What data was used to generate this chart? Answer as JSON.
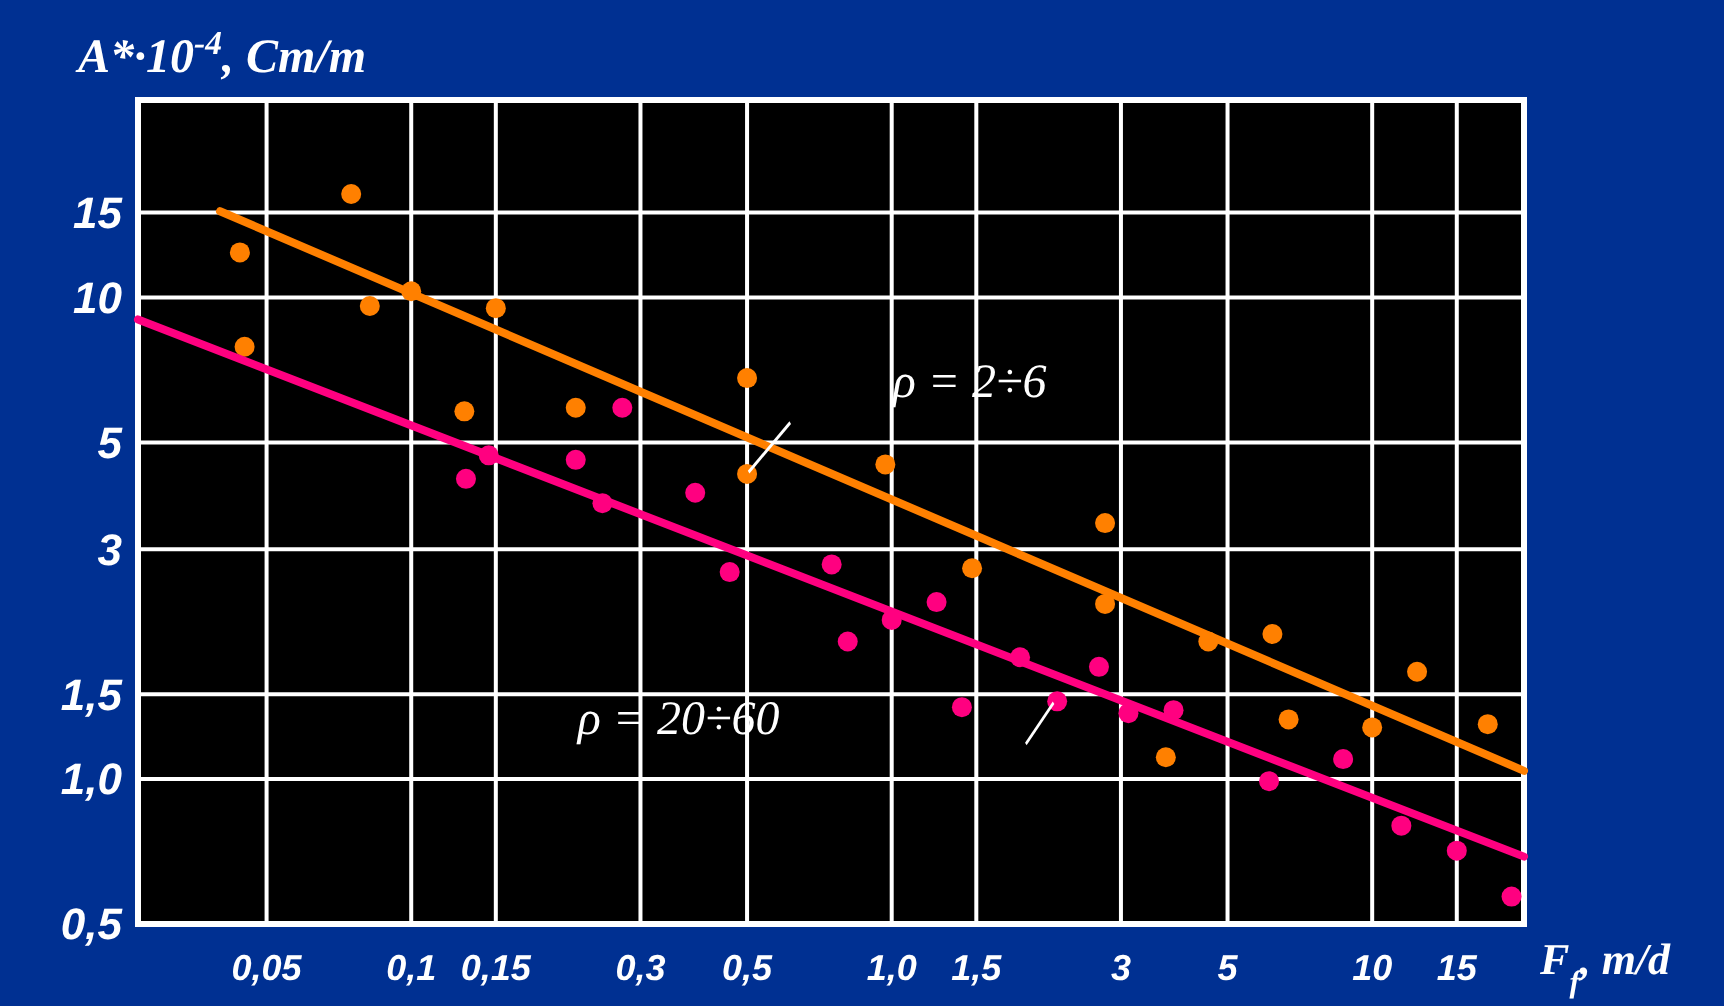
{
  "chart_data": {
    "type": "scatter",
    "xlabel": "F$_{f}$, m/d",
    "ylabel": "A*·10$^{-4}$, Cm/m",
    "xlim": [
      0.027,
      20.7
    ],
    "ylim": [
      0.5,
      25.7
    ],
    "xticks": [
      {
        "value": 0.05,
        "label": "0,05"
      },
      {
        "value": 0.1,
        "label": "0,1"
      },
      {
        "value": 0.15,
        "label": "0,15"
      },
      {
        "value": 0.3,
        "label": "0,3"
      },
      {
        "value": 0.5,
        "label": "0,5"
      },
      {
        "value": 1,
        "label": "1,0"
      },
      {
        "value": 1.5,
        "label": "1,5"
      },
      3,
      5,
      10,
      15
    ],
    "yticks": [
      {
        "value": 0.5,
        "label": "0,5"
      },
      {
        "value": 1,
        "label": "1,0"
      },
      {
        "value": 1.5,
        "label": "1,5"
      },
      3,
      5,
      10,
      15
    ],
    "grid": true,
    "marker": "circle",
    "log": "xy",
    "series": [
      {
        "color": "#ff8000",
        "x": [
          0.044,
          0.045,
          0.075,
          0.082,
          0.1,
          0.129,
          0.15,
          0.22,
          0.5,
          0.5,
          0.97,
          1.47,
          2.78,
          2.78,
          3.72,
          4.56,
          6.2,
          6.7,
          10,
          12.4,
          17.4
        ],
        "values": [
          12.4,
          7.9,
          16.4,
          9.6,
          10.3,
          5.8,
          9.5,
          5.9,
          6.8,
          4.3,
          4.5,
          2.74,
          3.4,
          2.31,
          1.11,
          1.93,
          2.0,
          1.33,
          1.28,
          1.67,
          1.3
        ]
      },
      {
        "color": "#ff0080",
        "x": [
          0.13,
          0.145,
          0.22,
          0.25,
          0.275,
          0.39,
          0.46,
          0.75,
          0.81,
          1.0,
          1.24,
          1.4,
          1.85,
          2.21,
          2.7,
          3.11,
          3.86,
          6.1,
          8.7,
          11.5,
          15,
          19.5
        ],
        "values": [
          4.2,
          4.7,
          4.6,
          3.74,
          5.9,
          3.93,
          2.69,
          2.79,
          1.93,
          2.14,
          2.33,
          1.41,
          1.79,
          1.45,
          1.71,
          1.37,
          1.39,
          0.99,
          1.1,
          0.8,
          0.71,
          0.57
        ]
      },
      {
        "type": "line",
        "marker": "none",
        "color": "#ff8000",
        "x": [
          0.04,
          20.7
        ],
        "values": [
          15.1,
          1.04
        ]
      },
      {
        "type": "line",
        "marker": "none",
        "color": "#ff0080",
        "x": [
          0.027,
          20.7
        ],
        "values": [
          9.0,
          0.69
        ]
      }
    ],
    "annotations": [
      "ρ = 2÷6",
      "ρ = 20÷60"
    ]
  }
}
